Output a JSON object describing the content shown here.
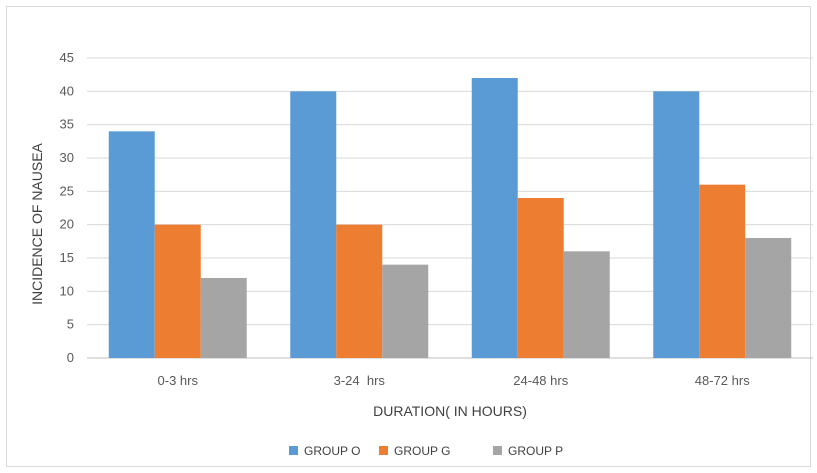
{
  "chart_data": {
    "type": "bar",
    "title": "",
    "xlabel": "DURATION( IN HOURS)",
    "ylabel": "INCIDENCE OF NAUSEA",
    "categories": [
      "0-3 hrs",
      "3-24  hrs",
      "24-48 hrs",
      "48-72 hrs"
    ],
    "series": [
      {
        "name": "GROUP O",
        "color": "#5b9bd5",
        "values": [
          34,
          40,
          42,
          40
        ]
      },
      {
        "name": "GROUP G",
        "color": "#ed7d31",
        "values": [
          20,
          20,
          24,
          26
        ]
      },
      {
        "name": "GROUP P",
        "color": "#a5a5a5",
        "values": [
          12,
          14,
          16,
          18
        ]
      }
    ],
    "ylim": [
      0,
      45
    ],
    "yticks": [
      0,
      5,
      10,
      15,
      20,
      25,
      30,
      35,
      40,
      45
    ],
    "grid": true,
    "legend": "bottom"
  }
}
